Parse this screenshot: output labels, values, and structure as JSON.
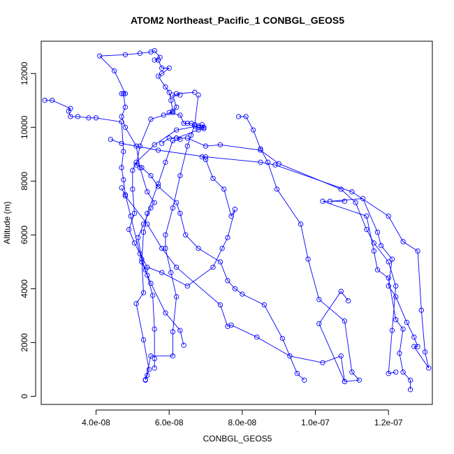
{
  "chart_data": {
    "type": "scatter",
    "title": "ATOM2 Northeast_Pacific_1 CONBGL_GEOS5",
    "xlabel": "CONBGL_GEOS5",
    "ylabel": "Altitude (m)",
    "xlim": [
      2.5e-08,
      1.32e-07
    ],
    "ylim": [
      -300,
      13200
    ],
    "x_ticks": [
      4e-08,
      6e-08,
      8e-08,
      1e-07,
      1.2e-07
    ],
    "x_tick_labels": [
      "4.0e-08",
      "6.0e-08",
      "8.0e-08",
      "1.0e-07",
      "1.2e-07"
    ],
    "y_ticks": [
      0,
      2000,
      4000,
      6000,
      8000,
      10000,
      12000
    ],
    "y_tick_labels": [
      "0",
      "2000",
      "4000",
      "6000",
      "8000",
      "10000",
      "12000"
    ],
    "colors": {
      "series": "#0000ff",
      "axes": "#000000"
    },
    "series": [
      {
        "points": [
          [
            5.35e-08,
            620
          ],
          [
            5.4e-08,
            780
          ],
          [
            5.45e-08,
            1000
          ],
          [
            5.3e-08,
            2100
          ],
          [
            5.1e-08,
            3450
          ],
          [
            5.3e-08,
            3850
          ],
          [
            5.25e-08,
            5100
          ],
          [
            5.15e-08,
            5900
          ],
          [
            5.3e-08,
            6400
          ],
          [
            5.5e-08,
            7000
          ],
          [
            5.6e-08,
            7200
          ],
          [
            5.4e-08,
            7600
          ],
          [
            5.2e-08,
            8500
          ],
          [
            5.1e-08,
            9300
          ],
          [
            4.8e-08,
            10000
          ],
          [
            4.7e-08,
            10400
          ],
          [
            4.8e-08,
            10750
          ],
          [
            4.75e-08,
            11250
          ],
          [
            4.7e-08,
            11250
          ],
          [
            4.75e-08,
            11250
          ],
          [
            4.8e-08,
            11250
          ],
          [
            4.5e-08,
            12100
          ],
          [
            4.1e-08,
            12650
          ],
          [
            4.8e-08,
            12700
          ],
          [
            5.2e-08,
            12750
          ],
          [
            5.5e-08,
            12800
          ],
          [
            5.6e-08,
            12850
          ],
          [
            5.75e-08,
            12600
          ],
          [
            5.6e-08,
            12500
          ],
          [
            5.7e-08,
            12500
          ],
          [
            5.8e-08,
            12200
          ],
          [
            6e-08,
            12200
          ],
          [
            5.8e-08,
            12000
          ],
          [
            5.7e-08,
            11900
          ],
          [
            5.9e-08,
            11500
          ],
          [
            6e-08,
            11300
          ],
          [
            6.05e-08,
            11000
          ],
          [
            6.1e-08,
            10600
          ],
          [
            6e-08,
            10550
          ],
          [
            6.3e-08,
            10450
          ],
          [
            6.4e-08,
            10150
          ],
          [
            6.5e-08,
            10150
          ],
          [
            6.6e-08,
            10150
          ],
          [
            6.7e-08,
            10050
          ],
          [
            6.8e-08,
            10000
          ],
          [
            6.9e-08,
            10000
          ],
          [
            6.95e-08,
            10000
          ],
          [
            6.8e-08,
            9900
          ],
          [
            6.2e-08,
            9600
          ],
          [
            6.3e-08,
            9550
          ],
          [
            6.1e-08,
            9500
          ],
          [
            5.9e-08,
            8700
          ],
          [
            5.7e-08,
            7900
          ],
          [
            5.4e-08,
            6800
          ],
          [
            5.3e-08,
            6100
          ],
          [
            5.25e-08,
            5000
          ],
          [
            5.4e-08,
            4500
          ],
          [
            5.55e-08,
            3750
          ],
          [
            5.6e-08,
            2500
          ],
          [
            5.6e-08,
            1400
          ],
          [
            5.6e-08,
            1050
          ]
        ]
      },
      {
        "points": [
          [
            2.6e-08,
            11000
          ],
          [
            2.8e-08,
            11000
          ],
          [
            3.3e-08,
            10700
          ],
          [
            3.25e-08,
            10600
          ],
          [
            3.3e-08,
            10400
          ],
          [
            3.5e-08,
            10400
          ],
          [
            3.8e-08,
            10350
          ],
          [
            4e-08,
            10350
          ],
          [
            4.7e-08,
            10200
          ],
          [
            4.75e-08,
            9100
          ],
          [
            4.7e-08,
            8500
          ],
          [
            4.75e-08,
            8050
          ],
          [
            4.8e-08,
            7500
          ],
          [
            4.95e-08,
            6700
          ],
          [
            5.2e-08,
            5300
          ],
          [
            5.35e-08,
            4700
          ],
          [
            5.5e-08,
            4200
          ],
          [
            5.9e-08,
            3100
          ],
          [
            6.3e-08,
            2450
          ],
          [
            6.4e-08,
            1900
          ]
        ]
      },
      {
        "points": [
          [
            4.4e-08,
            9550
          ],
          [
            4.7e-08,
            9400
          ],
          [
            5.7e-08,
            9150
          ],
          [
            7e-08,
            8900
          ],
          [
            8.5e-08,
            8700
          ],
          [
            8.9e-08,
            8600
          ],
          [
            1.1e-07,
            7600
          ],
          [
            1.2e-07,
            6700
          ],
          [
            1.24e-07,
            5750
          ],
          [
            1.28e-07,
            5400
          ],
          [
            1.29e-07,
            3200
          ],
          [
            1.3e-07,
            1650
          ],
          [
            1.31e-07,
            1050
          ],
          [
            1.27e-07,
            1850
          ],
          [
            1.28e-07,
            1850
          ],
          [
            1.27e-07,
            2200
          ],
          [
            1.25e-07,
            2750
          ],
          [
            1.22e-07,
            3700
          ],
          [
            1.2e-07,
            4100
          ],
          [
            1.21e-07,
            5100
          ],
          [
            1.18e-07,
            5600
          ],
          [
            1.17e-07,
            6100
          ],
          [
            1.13e-07,
            7350
          ],
          [
            1.04e-07,
            7250
          ],
          [
            1.08e-07,
            7250
          ],
          [
            1.02e-07,
            7250
          ],
          [
            1.14e-07,
            6700
          ],
          [
            1.16e-07,
            5400
          ],
          [
            1.17e-07,
            4700
          ],
          [
            1.2e-07,
            4400
          ],
          [
            1.22e-07,
            2850
          ],
          [
            1.24e-07,
            2500
          ],
          [
            1.23e-07,
            1600
          ],
          [
            1.24e-07,
            900
          ],
          [
            1.26e-07,
            600
          ],
          [
            1.26e-07,
            250
          ]
        ]
      },
      {
        "points": [
          [
            5.8e-08,
            9400
          ],
          [
            6e-08,
            9600
          ],
          [
            6.2e-08,
            9600
          ],
          [
            6.5e-08,
            9600
          ],
          [
            7e-08,
            9300
          ],
          [
            7.4e-08,
            9350
          ],
          [
            8.5e-08,
            9150
          ],
          [
            9e-08,
            8650
          ],
          [
            1.07e-07,
            7700
          ],
          [
            1.11e-07,
            7200
          ],
          [
            1.14e-07,
            6200
          ],
          [
            1.16e-07,
            5700
          ],
          [
            1.2e-07,
            5000
          ],
          [
            1.22e-07,
            4100
          ],
          [
            1.21e-07,
            2450
          ],
          [
            1.2e-07,
            850
          ],
          [
            1.22e-07,
            900
          ]
        ]
      },
      {
        "points": [
          [
            7.9e-08,
            10400
          ],
          [
            8.1e-08,
            10400
          ],
          [
            8.3e-08,
            9900
          ],
          [
            8.5e-08,
            9200
          ],
          [
            8.7e-08,
            8700
          ],
          [
            8.95e-08,
            7700
          ],
          [
            9.6e-08,
            6400
          ],
          [
            9.8e-08,
            5100
          ],
          [
            1.01e-07,
            3600
          ],
          [
            1.08e-07,
            2800
          ],
          [
            1.1e-07,
            900
          ],
          [
            1.12e-07,
            600
          ],
          [
            1.08e-07,
            550
          ],
          [
            1.01e-07,
            2700
          ],
          [
            1.07e-07,
            3900
          ],
          [
            1.09e-07,
            3550
          ]
        ]
      },
      {
        "points": [
          [
            6.8e-08,
            11200
          ],
          [
            6.7e-08,
            10100
          ],
          [
            6.6e-08,
            9700
          ],
          [
            6.5e-08,
            9300
          ],
          [
            6.3e-08,
            8200
          ],
          [
            6.1e-08,
            7000
          ],
          [
            5.9e-08,
            6000
          ],
          [
            5.9e-08,
            5500
          ],
          [
            6.05e-08,
            4600
          ],
          [
            6.2e-08,
            3700
          ],
          [
            6.1e-08,
            2400
          ],
          [
            6.1e-08,
            1500
          ],
          [
            5.5e-08,
            1500
          ],
          [
            5.35e-08,
            600
          ]
        ]
      },
      {
        "points": [
          [
            6.7e-08,
            11300
          ],
          [
            6.2e-08,
            11250
          ],
          [
            6.3e-08,
            11200
          ],
          [
            6.1e-08,
            11200
          ],
          [
            6.2e-08,
            10750
          ],
          [
            6.1e-08,
            10550
          ],
          [
            5.85e-08,
            10450
          ],
          [
            5.5e-08,
            10300
          ],
          [
            5.2e-08,
            9300
          ],
          [
            5.1e-08,
            8600
          ],
          [
            5.25e-08,
            8500
          ],
          [
            5.5e-08,
            8200
          ],
          [
            5.7e-08,
            7800
          ],
          [
            6.2e-08,
            7200
          ],
          [
            6.3e-08,
            6800
          ],
          [
            6.45e-08,
            6000
          ],
          [
            6.8e-08,
            5500
          ],
          [
            7.4e-08,
            5000
          ],
          [
            7.6e-08,
            4300
          ],
          [
            7.8e-08,
            4000
          ],
          [
            8e-08,
            3800
          ],
          [
            8.6e-08,
            3400
          ],
          [
            9.1e-08,
            2150
          ],
          [
            9.5e-08,
            850
          ],
          [
            9.7e-08,
            600
          ]
        ]
      },
      {
        "points": [
          [
            6.9e-08,
            8900
          ],
          [
            7e-08,
            8800
          ],
          [
            7.2e-08,
            8100
          ],
          [
            7.5e-08,
            7700
          ],
          [
            7.7e-08,
            6700
          ],
          [
            7.8e-08,
            6950
          ],
          [
            7.6e-08,
            5900
          ],
          [
            7.45e-08,
            5500
          ],
          [
            7.2e-08,
            4800
          ],
          [
            6.5e-08,
            4100
          ],
          [
            5.8e-08,
            4600
          ],
          [
            5.4e-08,
            4800
          ],
          [
            5.05e-08,
            5700
          ],
          [
            4.9e-08,
            6200
          ],
          [
            5.05e-08,
            6800
          ],
          [
            5e-08,
            7700
          ],
          [
            5e-08,
            8400
          ],
          [
            5.1e-08,
            8700
          ],
          [
            5.6e-08,
            9350
          ],
          [
            6.2e-08,
            9900
          ],
          [
            6.8e-08,
            10050
          ],
          [
            6.9e-08,
            10100
          ],
          [
            6.95e-08,
            9950
          ]
        ]
      },
      {
        "points": [
          [
            4.7e-08,
            7750
          ],
          [
            4.8e-08,
            7450
          ],
          [
            5.4e-08,
            6400
          ],
          [
            5.8e-08,
            5500
          ],
          [
            6.2e-08,
            4800
          ],
          [
            7.4e-08,
            3400
          ],
          [
            7.6e-08,
            2600
          ],
          [
            7.7e-08,
            2650
          ],
          [
            8.4e-08,
            2200
          ],
          [
            9.3e-08,
            1500
          ],
          [
            1.02e-07,
            1250
          ],
          [
            1.07e-07,
            1500
          ],
          [
            1.08e-07,
            550
          ]
        ]
      }
    ]
  }
}
